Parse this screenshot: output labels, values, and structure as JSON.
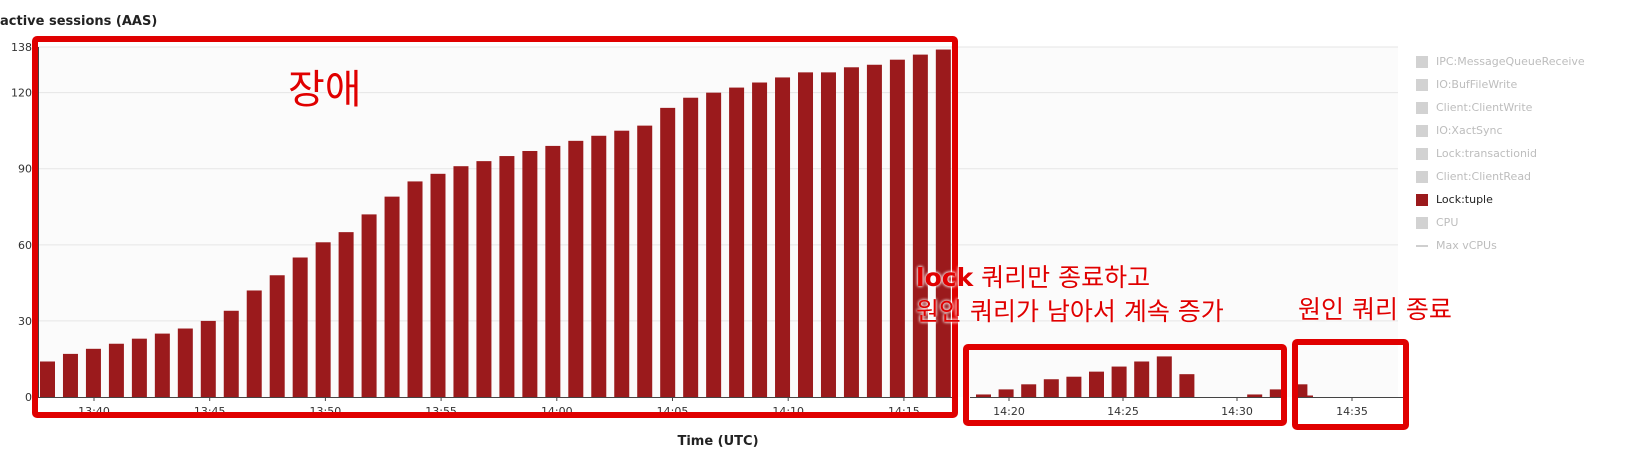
{
  "chart_data": {
    "type": "bar",
    "ylabel": "active sessions (AAS)",
    "xlabel": "Time (UTC)",
    "ylim": [
      0,
      138
    ],
    "yticks": [
      0,
      30,
      60,
      90,
      120,
      138
    ],
    "panels": [
      {
        "xticks": [
          "13:40",
          "13:45",
          "13:50",
          "13:55",
          "14:00",
          "14:05",
          "14:10",
          "14:15"
        ],
        "values": [
          14,
          17,
          19,
          21,
          23,
          25,
          27,
          30,
          34,
          42,
          48,
          55,
          61,
          65,
          72,
          79,
          85,
          88,
          91,
          93,
          95,
          97,
          99,
          101,
          103,
          105,
          107,
          114,
          118,
          120,
          122,
          124,
          126,
          128,
          128,
          130,
          131,
          133,
          135,
          137
        ]
      },
      {
        "xticks": [
          "14:20",
          "14:25",
          "14:30"
        ],
        "values": [
          1,
          3,
          5,
          7,
          8,
          10,
          12,
          14,
          16,
          9,
          0,
          0,
          1,
          3,
          5
        ]
      },
      {
        "xticks": [
          "14:35"
        ],
        "values": [
          0.3
        ]
      }
    ],
    "legend": {
      "placement": "right",
      "items": [
        {
          "label": "IPC:MessageQueueReceive",
          "active": false
        },
        {
          "label": "IO:BufFileWrite",
          "active": false
        },
        {
          "label": "Client:ClientWrite",
          "active": false
        },
        {
          "label": "IO:XactSync",
          "active": false
        },
        {
          "label": "Lock:transactionid",
          "active": false
        },
        {
          "label": "Client:ClientRead",
          "active": false
        },
        {
          "label": "Lock:tuple",
          "active": true
        },
        {
          "label": "CPU",
          "active": false
        },
        {
          "label": "Max vCPUs",
          "active": false,
          "line": true
        }
      ]
    },
    "series_color": "#9b1a1c"
  },
  "annotations": {
    "outage": "장애",
    "lock_word": "lock",
    "lock_rest": " 쿼리만 종료하고",
    "cause_remains": "원인 쿼리가 남아서 계속 증가",
    "cause_ended": "원인 쿼리 종료"
  }
}
